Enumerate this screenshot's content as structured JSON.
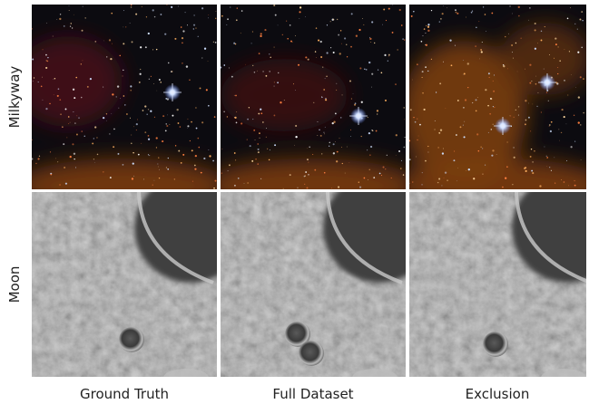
{
  "row_labels": [
    "Milkyway",
    "Moon"
  ],
  "column_labels": [
    "Ground Truth",
    "Full Dataset",
    "Exclusion"
  ]
}
